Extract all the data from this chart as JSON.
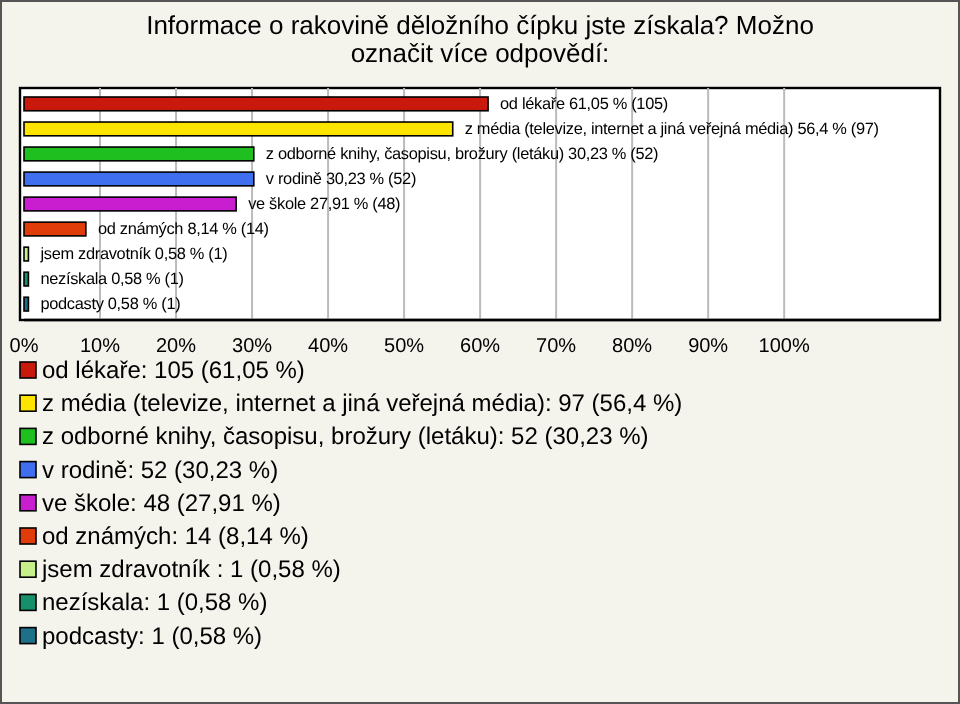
{
  "chart_data": {
    "type": "bar",
    "orientation": "horizontal",
    "title": "Informace o rakovině děložního čípku jste získala? Možno označit více odpovědí:",
    "categories": [
      null,
      null,
      null,
      null,
      null,
      null,
      null,
      null,
      null
    ],
    "values": [
      61.05,
      56.4,
      30.23,
      30.23,
      27.91,
      8.14,
      0.58,
      0.58,
      0.58
    ],
    "colors": [
      "#c8190c",
      "#ffe400",
      "#1fbf1f",
      "#3f6fef",
      "#c81ed0",
      "#e03c0a",
      "#c8f08a",
      "#16906a",
      "#1c7088"
    ],
    "value_labels": [
      "od lékaře 61,05 % (105)",
      "z média (televize, internet a jiná veřejná média) 56,4 % (97)",
      "z odborné knihy, časopisu, brožury (letáku) 30,23 % (52)",
      "v rodině 30,23 % (52)",
      "ve škole 27,91 % (48)",
      "od známých 8,14 % (14)",
      "jsem zdravotník  0,58 % (1)",
      "nezískala 0,58 % (1)",
      "podcasty 0,58 % (1)"
    ],
    "xlim": [
      0,
      120.5
    ],
    "xticks": [
      {
        "value": 0,
        "label": "0%"
      },
      {
        "value": 10,
        "label": "10%"
      },
      {
        "value": 20,
        "label": "20%"
      },
      {
        "value": 30,
        "label": "30%"
      },
      {
        "value": 40,
        "label": "40%"
      },
      {
        "value": 50,
        "label": "50%"
      },
      {
        "value": 60,
        "label": "60%"
      },
      {
        "value": 70,
        "label": "70%"
      },
      {
        "value": 80,
        "label": "80%"
      },
      {
        "value": 90,
        "label": "90%"
      },
      {
        "value": 100,
        "label": "100%"
      }
    ],
    "grid": "x",
    "tick_labels": "x",
    "annotations": [
      "od lékaře: 105 (61,05 %)",
      "z média (televize, internet a jiná veřejná média): 97 (56,4 %)",
      "z odborné knihy, časopisu, brožury (letáku): 52 (30,23 %)",
      "v rodině: 52 (30,23 %)",
      "ve škole: 48 (27,91 %)",
      "od známých: 14 (8,14 %)",
      "jsem zdravotník : 1 (0,58 %)",
      "nezískala: 1 (0,58 %)",
      "podcasty: 1 (0,58 %)"
    ]
  }
}
